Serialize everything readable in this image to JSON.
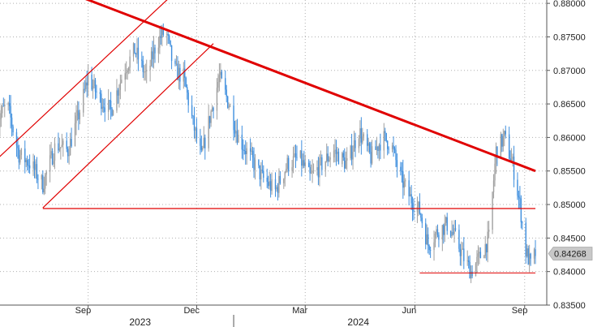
{
  "chart_data": {
    "type": "candlestick",
    "title": "",
    "xlabel": "",
    "ylabel": "",
    "ylim": [
      0.835,
      0.8805
    ],
    "y_ticks": [
      "0.88000",
      "0.87500",
      "0.87000",
      "0.86500",
      "0.86000",
      "0.85500",
      "0.85000",
      "0.84500",
      "0.84000",
      "0.83500"
    ],
    "y_tick_values": [
      0.88,
      0.875,
      0.87,
      0.865,
      0.86,
      0.855,
      0.85,
      0.845,
      0.84,
      0.835
    ],
    "x_ticks": [
      "Sep",
      "Dec",
      "Mar",
      "Jun",
      "Sep"
    ],
    "x_tick_dates": [
      "2023-09-01",
      "2023-12-01",
      "2024-03-01",
      "2024-06-01",
      "2024-09-01"
    ],
    "year_labels": [
      "2023",
      "2024"
    ],
    "year_label_dates": [
      "2023-10-15",
      "2024-04-15"
    ],
    "year_divider_date": "2024-01-01",
    "x_range": [
      "2023-06-15",
      "2024-09-10"
    ],
    "grid": true,
    "last_price_label": "0.84268",
    "last_price": 0.84268,
    "price_path": [
      [
        "2023-06-15",
        0.862
      ],
      [
        "2023-06-25",
        0.865
      ],
      [
        "2023-07-05",
        0.8575
      ],
      [
        "2023-07-15",
        0.856
      ],
      [
        "2023-07-25",
        0.853
      ],
      [
        "2023-08-05",
        0.859
      ],
      [
        "2023-08-15",
        0.858
      ],
      [
        "2023-08-25",
        0.864
      ],
      [
        "2023-09-01",
        0.869
      ],
      [
        "2023-09-10",
        0.866
      ],
      [
        "2023-09-20",
        0.864
      ],
      [
        "2023-10-01",
        0.87
      ],
      [
        "2023-10-10",
        0.873
      ],
      [
        "2023-10-20",
        0.869
      ],
      [
        "2023-10-28",
        0.874
      ],
      [
        "2023-11-05",
        0.876
      ],
      [
        "2023-11-12",
        0.87
      ],
      [
        "2023-11-20",
        0.869
      ],
      [
        "2023-11-28",
        0.862
      ],
      [
        "2023-12-05",
        0.857
      ],
      [
        "2023-12-12",
        0.863
      ],
      [
        "2023-12-20",
        0.869
      ],
      [
        "2023-12-28",
        0.865
      ],
      [
        "2024-01-05",
        0.86
      ],
      [
        "2024-01-15",
        0.857
      ],
      [
        "2024-01-25",
        0.854
      ],
      [
        "2024-02-05",
        0.852
      ],
      [
        "2024-02-15",
        0.856
      ],
      [
        "2024-02-25",
        0.857
      ],
      [
        "2024-03-05",
        0.854
      ],
      [
        "2024-03-15",
        0.856
      ],
      [
        "2024-03-25",
        0.858
      ],
      [
        "2024-04-05",
        0.856
      ],
      [
        "2024-04-15",
        0.861
      ],
      [
        "2024-04-25",
        0.857
      ],
      [
        "2024-05-05",
        0.86
      ],
      [
        "2024-05-12",
        0.859
      ],
      [
        "2024-05-20",
        0.854
      ],
      [
        "2024-05-28",
        0.851
      ],
      [
        "2024-06-05",
        0.849
      ],
      [
        "2024-06-12",
        0.844
      ],
      [
        "2024-06-20",
        0.846
      ],
      [
        "2024-06-28",
        0.847
      ],
      [
        "2024-07-05",
        0.845
      ],
      [
        "2024-07-12",
        0.842
      ],
      [
        "2024-07-18",
        0.84
      ],
      [
        "2024-07-25",
        0.842
      ],
      [
        "2024-08-02",
        0.845
      ],
      [
        "2024-08-08",
        0.858
      ],
      [
        "2024-08-15",
        0.86
      ],
      [
        "2024-08-22",
        0.856
      ],
      [
        "2024-08-28",
        0.85
      ],
      [
        "2024-09-02",
        0.843
      ],
      [
        "2024-09-06",
        0.841
      ],
      [
        "2024-09-10",
        0.8427
      ]
    ],
    "annotations": {
      "downtrend_line": {
        "from": [
          "2023-08-25",
          0.881
        ],
        "to": [
          "2024-09-10",
          0.855
        ],
        "color": "#e00000"
      },
      "channel_upper": {
        "from": [
          "2023-06-15",
          0.8565
        ],
        "to": [
          "2023-11-15",
          0.882
        ],
        "color": "#e00000"
      },
      "channel_lower": {
        "from": [
          "2023-07-25",
          0.8495
        ],
        "to": [
          "2023-12-15",
          0.874
        ],
        "color": "#e00000"
      },
      "support_line": {
        "level": 0.8494,
        "from": "2023-07-25",
        "to": "2024-09-10",
        "color": "#e00000"
      },
      "low_line": {
        "level": 0.8398,
        "from": "2024-06-05",
        "to": "2024-09-10",
        "color": "#e00000"
      }
    },
    "colors": {
      "up": "#a0a0a0",
      "down": "#3f8fde",
      "annotation": "#e00000",
      "grid": "#b0b0b0"
    }
  }
}
